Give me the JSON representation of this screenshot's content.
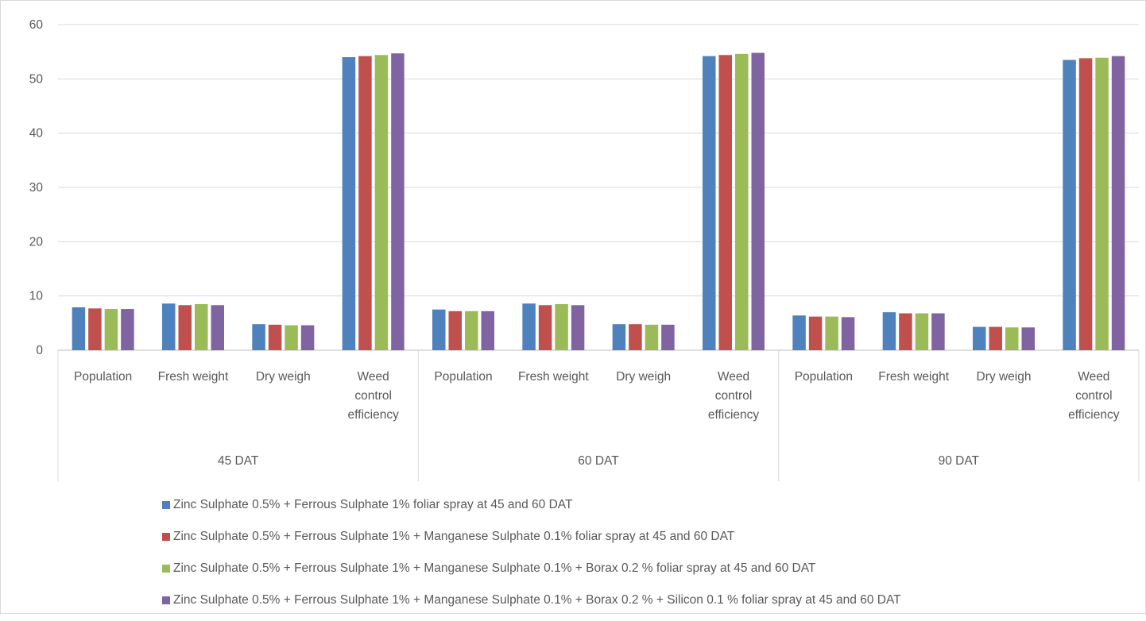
{
  "chart_data": {
    "type": "bar",
    "title": "",
    "xlabel": "",
    "ylabel": "",
    "ylim": [
      0,
      60
    ],
    "y_ticks": [
      "0",
      "10",
      "20",
      "30",
      "40",
      "50",
      "60"
    ],
    "grid": true,
    "legend_position": "bottom",
    "groups": [
      {
        "label": "45 DAT",
        "categories": [
          [
            "Population"
          ],
          [
            "Fresh weight"
          ],
          [
            "Dry weigh"
          ],
          [
            "Weed",
            "control",
            "efficiency"
          ]
        ]
      },
      {
        "label": "60 DAT",
        "categories": [
          [
            "Population"
          ],
          [
            "Fresh weight"
          ],
          [
            "Dry weigh"
          ],
          [
            "Weed",
            "control",
            "efficiency"
          ]
        ]
      },
      {
        "label": "90 DAT",
        "categories": [
          [
            "Population"
          ],
          [
            "Fresh weight"
          ],
          [
            "Dry weigh"
          ],
          [
            "Weed",
            "control",
            "efficiency"
          ]
        ]
      }
    ],
    "series": [
      {
        "name": "Zinc Sulphate 0.5% + Ferrous Sulphate 1% foliar spray at 45 and 60 DAT",
        "color": "#4f81bd",
        "values": [
          7.9,
          8.6,
          4.8,
          54.0,
          7.5,
          8.6,
          4.8,
          54.2,
          6.4,
          7.0,
          4.3,
          53.5
        ]
      },
      {
        "name": "Zinc Sulphate 0.5% + Ferrous Sulphate 1% + Manganese Sulphate 0.1% foliar spray at 45 and 60 DAT",
        "color": "#c0504d",
        "values": [
          7.7,
          8.3,
          4.7,
          54.2,
          7.2,
          8.3,
          4.8,
          54.4,
          6.2,
          6.8,
          4.3,
          53.8
        ]
      },
      {
        "name": "Zinc Sulphate 0.5% + Ferrous Sulphate 1% + Manganese Sulphate 0.1% + Borax 0.2 % foliar spray at 45 and 60 DAT",
        "color": "#9bbb59",
        "values": [
          7.6,
          8.5,
          4.6,
          54.4,
          7.2,
          8.5,
          4.7,
          54.6,
          6.2,
          6.8,
          4.2,
          53.9
        ]
      },
      {
        "name": "Zinc Sulphate 0.5% + Ferrous Sulphate 1% + Manganese Sulphate 0.1% + Borax 0.2 % + Silicon 0.1 % foliar spray at 45 and 60 DAT",
        "color": "#8064a2",
        "values": [
          7.6,
          8.3,
          4.6,
          54.7,
          7.2,
          8.3,
          4.7,
          54.8,
          6.1,
          6.8,
          4.2,
          54.2
        ]
      }
    ]
  }
}
